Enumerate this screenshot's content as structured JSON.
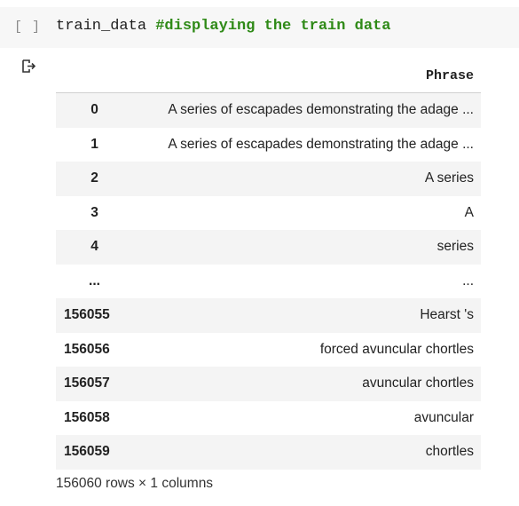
{
  "cell": {
    "run_indicator": "[ ]",
    "code": "train_data ",
    "comment": "#displaying the train data"
  },
  "output": {
    "icon": "output-redirect-icon",
    "columns": [
      "",
      "Phrase"
    ],
    "rows": [
      {
        "index": "0",
        "phrase": "A series of escapades demonstrating the adage ..."
      },
      {
        "index": "1",
        "phrase": "A series of escapades demonstrating the adage ..."
      },
      {
        "index": "2",
        "phrase": "A series"
      },
      {
        "index": "3",
        "phrase": "A"
      },
      {
        "index": "4",
        "phrase": "series"
      },
      {
        "index": "...",
        "phrase": "..."
      },
      {
        "index": "156055",
        "phrase": "Hearst 's"
      },
      {
        "index": "156056",
        "phrase": "forced avuncular chortles"
      },
      {
        "index": "156057",
        "phrase": "avuncular chortles"
      },
      {
        "index": "156058",
        "phrase": "avuncular"
      },
      {
        "index": "156059",
        "phrase": "chortles"
      }
    ],
    "shape_note": "156060 rows × 1 columns"
  }
}
